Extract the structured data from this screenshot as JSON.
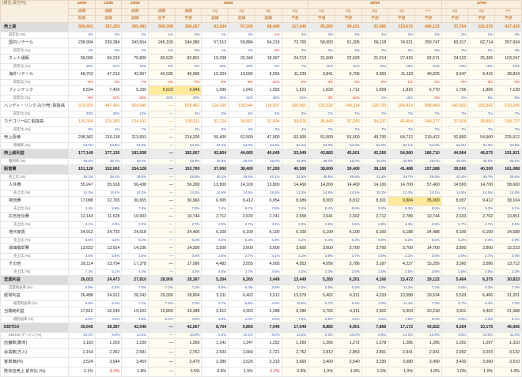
{
  "meta": {
    "unit_label": "(単位:百万円)"
  },
  "columns": [
    {
      "period": "22/05",
      "q": "通期",
      "t": "実績"
    },
    {
      "period": "23/05",
      "q": "通期",
      "t": "実績"
    },
    {
      "period": "24/05",
      "q": "通期",
      "t": "実績"
    },
    {
      "period": "25/05",
      "q": "通期",
      "t": "会予"
    },
    {
      "period": "25/05",
      "q": "通期",
      "t": "予想"
    },
    {
      "period": "25/05",
      "q": "1Q",
      "t": "実績"
    },
    {
      "period": "25/05",
      "q": "2Q",
      "t": "実績"
    },
    {
      "period": "25/05",
      "q": "3Q",
      "t": "実績"
    },
    {
      "period": "25/05",
      "q": "4Q",
      "t": "予想"
    },
    {
      "period": "26/05",
      "q": "1Q",
      "t": "予想"
    },
    {
      "period": "26/05",
      "q": "2Q",
      "t": "予想"
    },
    {
      "period": "26/05",
      "q": "3Q",
      "t": "予想"
    },
    {
      "period": "26/05",
      "q": "4Q",
      "t": "予想"
    },
    {
      "period": "26/05",
      "q": "FY",
      "t": "予想"
    },
    {
      "period": "27/05",
      "q": "1Q",
      "t": "予想"
    },
    {
      "period": "27/05",
      "q": "2Q",
      "t": "予想"
    },
    {
      "period": "27/05",
      "q": "FY",
      "t": "予想"
    }
  ],
  "highlight_cells": [
    [
      8,
      3
    ],
    [
      8,
      4
    ],
    [
      22,
      12
    ],
    [
      22,
      13
    ]
  ],
  "rows": [
    {
      "label": "売上高",
      "kind": "section",
      "style": "orange",
      "values": [
        "385,491",
        "387,253",
        "395,491",
        "399,308",
        "396,267",
        "93,204",
        "97,165",
        "88,449",
        "117,449",
        "95,383",
        "99,101",
        "91,966",
        "119,672",
        "406,122",
        "97,764",
        "101,575",
        "417,433"
      ]
    },
    {
      "label": "前年比 (%)",
      "kind": "pct",
      "indent": 1,
      "values": [
        "3%",
        "0%",
        "2%",
        "1%",
        "0%",
        "1%",
        "3%",
        "-1%",
        "4%",
        "2%",
        "2%",
        "4%",
        "2%",
        "2%",
        "2%",
        "2%",
        "3%"
      ]
    },
    {
      "label": "国内リテール",
      "kind": "main",
      "indent": 1,
      "values": [
        "238,904",
        "239,384",
        "243,554",
        "245,100",
        "244,380",
        "57,512",
        "59,884",
        "54,219",
        "72,765",
        "58,903",
        "61,205",
        "56,118",
        "74,521",
        "250,747",
        "60,317",
        "62,714",
        "257,934"
      ]
    },
    {
      "label": "前年比 (%)",
      "kind": "pct",
      "indent": 2,
      "values": [
        "2%",
        "0%",
        "2%",
        "1%",
        "0%",
        "1%",
        "2%",
        "-2%",
        "3%",
        "2%",
        "2%",
        "3%",
        "2%",
        "3%",
        "2%",
        "2%",
        "3%"
      ]
    },
    {
      "label": "ネット通販",
      "kind": "main",
      "indent": 1,
      "values": [
        "58,090",
        "66,233",
        "75,800",
        "80,520",
        "82,801",
        "19,338",
        "20,344",
        "18,907",
        "24,212",
        "21,509",
        "22,633",
        "21,014",
        "27,415",
        "92,571",
        "24,132",
        "25,366",
        "103,247"
      ]
    },
    {
      "label": "前年比 (%)",
      "kind": "pct",
      "indent": 2,
      "values": [
        "15%",
        "14%",
        "14%",
        "6%",
        "9%",
        "12%",
        "10%",
        "8%",
        "7%",
        "11%",
        "11%",
        "11%",
        "13%",
        "12%",
        "12%",
        "12%",
        "12%"
      ]
    },
    {
      "label": "海外リテール",
      "kind": "main",
      "indent": 1,
      "values": [
        "48,763",
        "47,210",
        "43,907",
        "42,035",
        "40,996",
        "10,204",
        "10,006",
        "9,556",
        "11,230",
        "9,841",
        "9,706",
        "9,360",
        "11,118",
        "40,025",
        "9,547",
        "9,415",
        "38,824"
      ]
    },
    {
      "label": "前年比 (%)",
      "kind": "pct",
      "indent": 2,
      "values": [
        "-8%",
        "-3%",
        "-7%",
        "-4%",
        "-7%",
        "-9%",
        "-8%",
        "-10%",
        "-2%",
        "-4%",
        "-3%",
        "-2%",
        "-1%",
        "-2%",
        "-3%",
        "-3%",
        "-3%"
      ]
    },
    {
      "label": "フィンテック",
      "kind": "main",
      "indent": 1,
      "values": [
        "9,534",
        "7,426",
        "5,330",
        "6,523",
        "6,946",
        "1,690",
        "2,041",
        "1,593",
        "1,622",
        "1,633",
        "1,712",
        "1,609",
        "1,816",
        "6,770",
        "1,706",
        "1,806",
        "7,128"
      ]
    },
    {
      "label": "前年比 (%)",
      "kind": "pct",
      "indent": 2,
      "values": [
        "-9%",
        "-22%",
        "-28%",
        "22%",
        "30%",
        "35%",
        "42%",
        "28%",
        "21%",
        "-3%",
        "-16%",
        "1%",
        "12%",
        "-3%",
        "4%",
        "5%",
        "5%"
      ]
    },
    {
      "label": "ハンディ・リンクス(小売) 取扱高",
      "kind": "main",
      "style": "orange",
      "values": [
        "373,925",
        "447,491",
        "509,840",
        "—",
        "529,461",
        "124,160",
        "130,544",
        "119,837",
        "155,001",
        "133,229",
        "140,114",
        "128,733",
        "166,414",
        "568,490",
        "142,932",
        "150,342",
        "610,245"
      ]
    },
    {
      "label": "前年比 (%)",
      "kind": "pct",
      "indent": 2,
      "values": [
        "23%",
        "20%",
        "14%",
        "—",
        "4%",
        "6%",
        "5%",
        "4%",
        "3%",
        "7%",
        "7%",
        "7%",
        "7%",
        "7%",
        "7%",
        "7%",
        "7%"
      ]
    },
    {
      "label": "カテゴリーEC 取扱高",
      "kind": "main",
      "style": "orange",
      "values": [
        "120,354",
        "125,283",
        "134,192",
        "—",
        "139,511",
        "33,124",
        "34,807",
        "31,904",
        "39,676",
        "35,443",
        "37,243",
        "34,137",
        "42,454",
        "149,277",
        "37,924",
        "39,850",
        "159,727"
      ]
    },
    {
      "label": "前年比 (%)",
      "kind": "pct",
      "indent": 2,
      "values": [
        "9%",
        "4%",
        "7%",
        "—",
        "4%",
        "5%",
        "4%",
        "3%",
        "4%",
        "7%",
        "7%",
        "7%",
        "7%",
        "7%",
        "7%",
        "7%",
        "7%"
      ]
    },
    {
      "label": "売上原価",
      "kind": "main",
      "values": [
        "208,342",
        "210,118",
        "213,553",
        "—",
        "214,200",
        "50,400",
        "52,500",
        "47,800",
        "63,500",
        "51,500",
        "53,500",
        "49,700",
        "64,712",
        "219,412",
        "52,800",
        "54,900",
        "225,512"
      ]
    },
    {
      "label": "原価率 (%)",
      "kind": "pct",
      "indent": 2,
      "values": [
        "54.0%",
        "54.3%",
        "54.0%",
        "—",
        "54.1%",
        "54.1%",
        "54.0%",
        "54.0%",
        "54.1%",
        "54.0%",
        "54.0%",
        "54.0%",
        "54.1%",
        "54.0%",
        "54.0%",
        "54.0%",
        "54.0%"
      ]
    },
    {
      "label": "売上総利益",
      "kind": "section",
      "values": [
        "177,149",
        "177,135",
        "181,938",
        "—",
        "182,067",
        "42,804",
        "44,665",
        "40,649",
        "53,949",
        "43,883",
        "45,601",
        "42,266",
        "54,960",
        "186,710",
        "44,964",
        "46,675",
        "191,921"
      ]
    },
    {
      "label": "粗利率 (%)",
      "kind": "pct",
      "indent": 1,
      "values": [
        "46.0%",
        "45.7%",
        "46.0%",
        "—",
        "45.9%",
        "45.9%",
        "46.0%",
        "46.0%",
        "45.9%",
        "46.0%",
        "46.0%",
        "46.0%",
        "45.9%",
        "46.0%",
        "46.0%",
        "46.0%",
        "46.0%"
      ]
    },
    {
      "label": "販管費",
      "kind": "section",
      "values": [
        "151,126",
        "152,662",
        "154,128",
        "—",
        "153,700",
        "37,600",
        "38,400",
        "37,200",
        "40,500",
        "38,600",
        "39,400",
        "38,100",
        "41,488",
        "157,588",
        "39,500",
        "40,300",
        "161,088"
      ]
    },
    {
      "label": "売上比 (%)",
      "kind": "pct",
      "indent": 1,
      "values": [
        "39.2%",
        "39.4%",
        "39.0%",
        "—",
        "38.8%",
        "40.3%",
        "39.5%",
        "42.1%",
        "34.5%",
        "40.5%",
        "39.8%",
        "41.4%",
        "34.7%",
        "38.8%",
        "40.4%",
        "39.7%",
        "38.6%"
      ]
    },
    {
      "label": "人件費",
      "kind": "main",
      "indent": 1,
      "values": [
        "55,247",
        "55,918",
        "56,438",
        "—",
        "56,200",
        "13,900",
        "14,100",
        "13,800",
        "14,400",
        "14,200",
        "14,400",
        "14,100",
        "14,700",
        "57,400",
        "14,500",
        "14,700",
        "58,600"
      ]
    },
    {
      "label": "売上比 (%)",
      "kind": "pct",
      "indent": 2,
      "values": [
        "14.3%",
        "14.4%",
        "14.3%",
        "—",
        "14.2%",
        "14.9%",
        "14.5%",
        "15.6%",
        "12.3%",
        "14.9%",
        "14.5%",
        "15.3%",
        "12.3%",
        "14.1%",
        "14.8%",
        "14.5%",
        "14.0%"
      ]
    },
    {
      "label": "物流費",
      "kind": "main",
      "indent": 1,
      "values": [
        "17,088",
        "22,765",
        "30,655",
        "—",
        "30,960",
        "6,905",
        "8,412",
        "6,954",
        "8,689",
        "8,003",
        "8,812",
        "8,301",
        "9,884",
        "35,000",
        "8,907",
        "9,412",
        "38,104"
      ]
    },
    {
      "label": "売上比 (%)",
      "kind": "pct",
      "indent": 2,
      "values": [
        "4.4%",
        "5.9%",
        "7.8%",
        "—",
        "7.8%",
        "7.4%",
        "8.7%",
        "7.9%",
        "7.4%",
        "8.4%",
        "8.9%",
        "9.0%",
        "8.3%",
        "8.6%",
        "9.1%",
        "9.3%",
        "9.1%"
      ]
    },
    {
      "label": "広告宣伝費",
      "kind": "main",
      "indent": 1,
      "values": [
        "12,143",
        "11,628",
        "10,903",
        "—",
        "10,744",
        "2,712",
        "2,633",
        "2,741",
        "2,658",
        "2,641",
        "2,602",
        "2,712",
        "2,789",
        "10,744",
        "2,633",
        "2,702",
        "10,851"
      ]
    },
    {
      "label": "売上比 (%)",
      "kind": "pct",
      "indent": 2,
      "values": [
        "3.1%",
        "3.0%",
        "2.8%",
        "—",
        "2.7%",
        "2.9%",
        "2.7%",
        "3.1%",
        "2.3%",
        "2.8%",
        "2.6%",
        "2.9%",
        "2.3%",
        "2.6%",
        "2.7%",
        "2.7%",
        "2.6%"
      ]
    },
    {
      "label": "地代家賃",
      "kind": "main",
      "indent": 1,
      "values": [
        "24,912",
        "24,733",
        "24,518",
        "—",
        "24,400",
        "6,100",
        "6,100",
        "6,100",
        "6,100",
        "6,100",
        "6,100",
        "6,100",
        "6,188",
        "24,488",
        "6,100",
        "6,100",
        "24,588"
      ]
    },
    {
      "label": "売上比 (%)",
      "kind": "pct",
      "indent": 2,
      "values": [
        "6.5%",
        "6.4%",
        "6.2%",
        "—",
        "6.2%",
        "6.5%",
        "6.3%",
        "6.9%",
        "5.2%",
        "6.4%",
        "6.2%",
        "6.6%",
        "5.2%",
        "6.0%",
        "6.2%",
        "6.0%",
        "5.9%"
      ]
    },
    {
      "label": "減価償却費",
      "kind": "main",
      "indent": 1,
      "values": [
        "13,622",
        "13,914",
        "14,236",
        "—",
        "14,300",
        "3,500",
        "3,600",
        "3,600",
        "3,600",
        "3,600",
        "3,700",
        "3,700",
        "3,700",
        "14,700",
        "3,800",
        "3,800",
        "15,233"
      ]
    },
    {
      "label": "売上比 (%)",
      "kind": "pct",
      "indent": 2,
      "values": [
        "3.5%",
        "3.6%",
        "3.6%",
        "—",
        "3.6%",
        "3.8%",
        "3.7%",
        "4.1%",
        "3.1%",
        "3.8%",
        "3.7%",
        "4.0%",
        "3.1%",
        "3.6%",
        "3.9%",
        "3.7%",
        "3.6%"
      ]
    },
    {
      "label": "その他",
      "kind": "main",
      "indent": 1,
      "values": [
        "28,114",
        "23,704",
        "17,378",
        "—",
        "17,096",
        "4,483",
        "3,555",
        "4,005",
        "4,953",
        "4,056",
        "3,786",
        "3,187",
        "4,227",
        "15,256",
        "3,560",
        "3,586",
        "13,712"
      ]
    },
    {
      "label": "売上比 (%)",
      "kind": "pct",
      "indent": 2,
      "values": [
        "7.3%",
        "6.1%",
        "4.4%",
        "—",
        "4.3%",
        "4.8%",
        "3.7%",
        "4.5%",
        "4.2%",
        "4.3%",
        "3.8%",
        "3.5%",
        "3.5%",
        "3.8%",
        "3.6%",
        "3.5%",
        "3.3%"
      ]
    },
    {
      "label": "営業利益",
      "kind": "section",
      "values": [
        "26,023",
        "24,473",
        "27,810",
        "28,900",
        "28,367",
        "5,204",
        "6,265",
        "3,449",
        "13,449",
        "5,283",
        "6,201",
        "4,166",
        "13,472",
        "29,122",
        "5,464",
        "6,375",
        "30,833"
      ]
    },
    {
      "label": "営業利益率 (%)",
      "kind": "pct",
      "indent": 1,
      "values": [
        "6.8%",
        "6.3%",
        "7.0%",
        "7.2%",
        "7.2%",
        "5.6%",
        "6.4%",
        "3.9%",
        "11.5%",
        "5.5%",
        "6.3%",
        "4.5%",
        "11.3%",
        "7.2%",
        "5.6%",
        "6.3%",
        "7.4%"
      ]
    },
    {
      "label": "経常利益",
      "kind": "main",
      "values": [
        "26,488",
        "24,912",
        "28,243",
        "29,300",
        "28,804",
        "5,311",
        "6,402",
        "3,512",
        "13,579",
        "5,402",
        "6,311",
        "4,233",
        "13,588",
        "29,534",
        "5,533",
        "6,466",
        "31,201"
      ]
    },
    {
      "label": "経常利益率 (%)",
      "kind": "pct",
      "indent": 2,
      "values": [
        "6.9%",
        "6.4%",
        "7.1%",
        "7.3%",
        "7.3%",
        "5.7%",
        "6.6%",
        "4.0%",
        "11.6%",
        "5.7%",
        "6.4%",
        "4.6%",
        "11.4%",
        "7.3%",
        "5.7%",
        "6.4%",
        "7.5%"
      ]
    },
    {
      "label": "当期純利益",
      "kind": "main",
      "values": [
        "17,812",
        "16,244",
        "19,102",
        "19,800",
        "19,488",
        "3,612",
        "4,302",
        "2,288",
        "9,286",
        "3,702",
        "4,311",
        "2,902",
        "9,303",
        "20,218",
        "3,811",
        "4,402",
        "21,388"
      ]
    },
    {
      "label": "純利益率 (%)",
      "kind": "pct",
      "indent": 2,
      "values": [
        "4.6%",
        "4.2%",
        "4.8%",
        "5.0%",
        "4.9%",
        "3.9%",
        "4.4%",
        "2.6%",
        "7.9%",
        "3.9%",
        "4.4%",
        "3.2%",
        "7.8%",
        "5.0%",
        "3.9%",
        "4.3%",
        "5.1%"
      ]
    },
    {
      "label": "EBITDA",
      "kind": "section",
      "values": [
        "39,645",
        "38,387",
        "42,046",
        "—",
        "42,667",
        "8,704",
        "9,865",
        "7,049",
        "17,049",
        "8,883",
        "9,901",
        "7,866",
        "17,172",
        "43,822",
        "9,264",
        "10,175",
        "46,066"
      ]
    },
    {
      "label": "EBITDAマージン (%)",
      "kind": "pct",
      "indent": 1,
      "values": [
        "10.3%",
        "9.9%",
        "10.6%",
        "—",
        "10.8%",
        "9.3%",
        "10.2%",
        "8.0%",
        "14.5%",
        "9.3%",
        "10.0%",
        "8.6%",
        "14.3%",
        "10.8%",
        "9.5%",
        "10.0%",
        "11.0%"
      ]
    },
    {
      "label": "店舗数(期末)",
      "kind": "main",
      "values": [
        "1,183",
        "1,203",
        "1,236",
        "—",
        "1,260",
        "1,241",
        "1,247",
        "1,252",
        "1,260",
        "1,266",
        "1,272",
        "1,278",
        "1,285",
        "1,285",
        "1,291",
        "1,297",
        "1,310"
      ]
    },
    {
      "label": "会員数(万人)",
      "kind": "main",
      "values": [
        "2,154",
        "2,362",
        "2,581",
        "—",
        "2,762",
        "2,633",
        "2,684",
        "2,721",
        "2,762",
        "2,812",
        "2,853",
        "2,891",
        "2,941",
        "2,941",
        "2,992",
        "3,033",
        "3,132"
      ]
    },
    {
      "label": "客単価(円)",
      "kind": "main",
      "values": [
        "3,524",
        "3,544",
        "3,459",
        "—",
        "3,470",
        "3,380",
        "3,520",
        "3,310",
        "3,660",
        "3,400",
        "3,540",
        "3,330",
        "3,680",
        "3,490",
        "3,420",
        "3,560",
        "3,510"
      ]
    },
    {
      "label": "既存店売上 前年比 (%)",
      "kind": "main",
      "values": [
        "2.1%",
        "-0.5%",
        "1.8%",
        "—",
        "0.5%",
        "0.9%",
        "1.5%",
        "-1.2%",
        "0.8%",
        "1.0%",
        "1.0%",
        "1.0%",
        "1.0%",
        "1.0%",
        "1.0%",
        "1.0%",
        "1.0%"
      ]
    }
  ]
}
